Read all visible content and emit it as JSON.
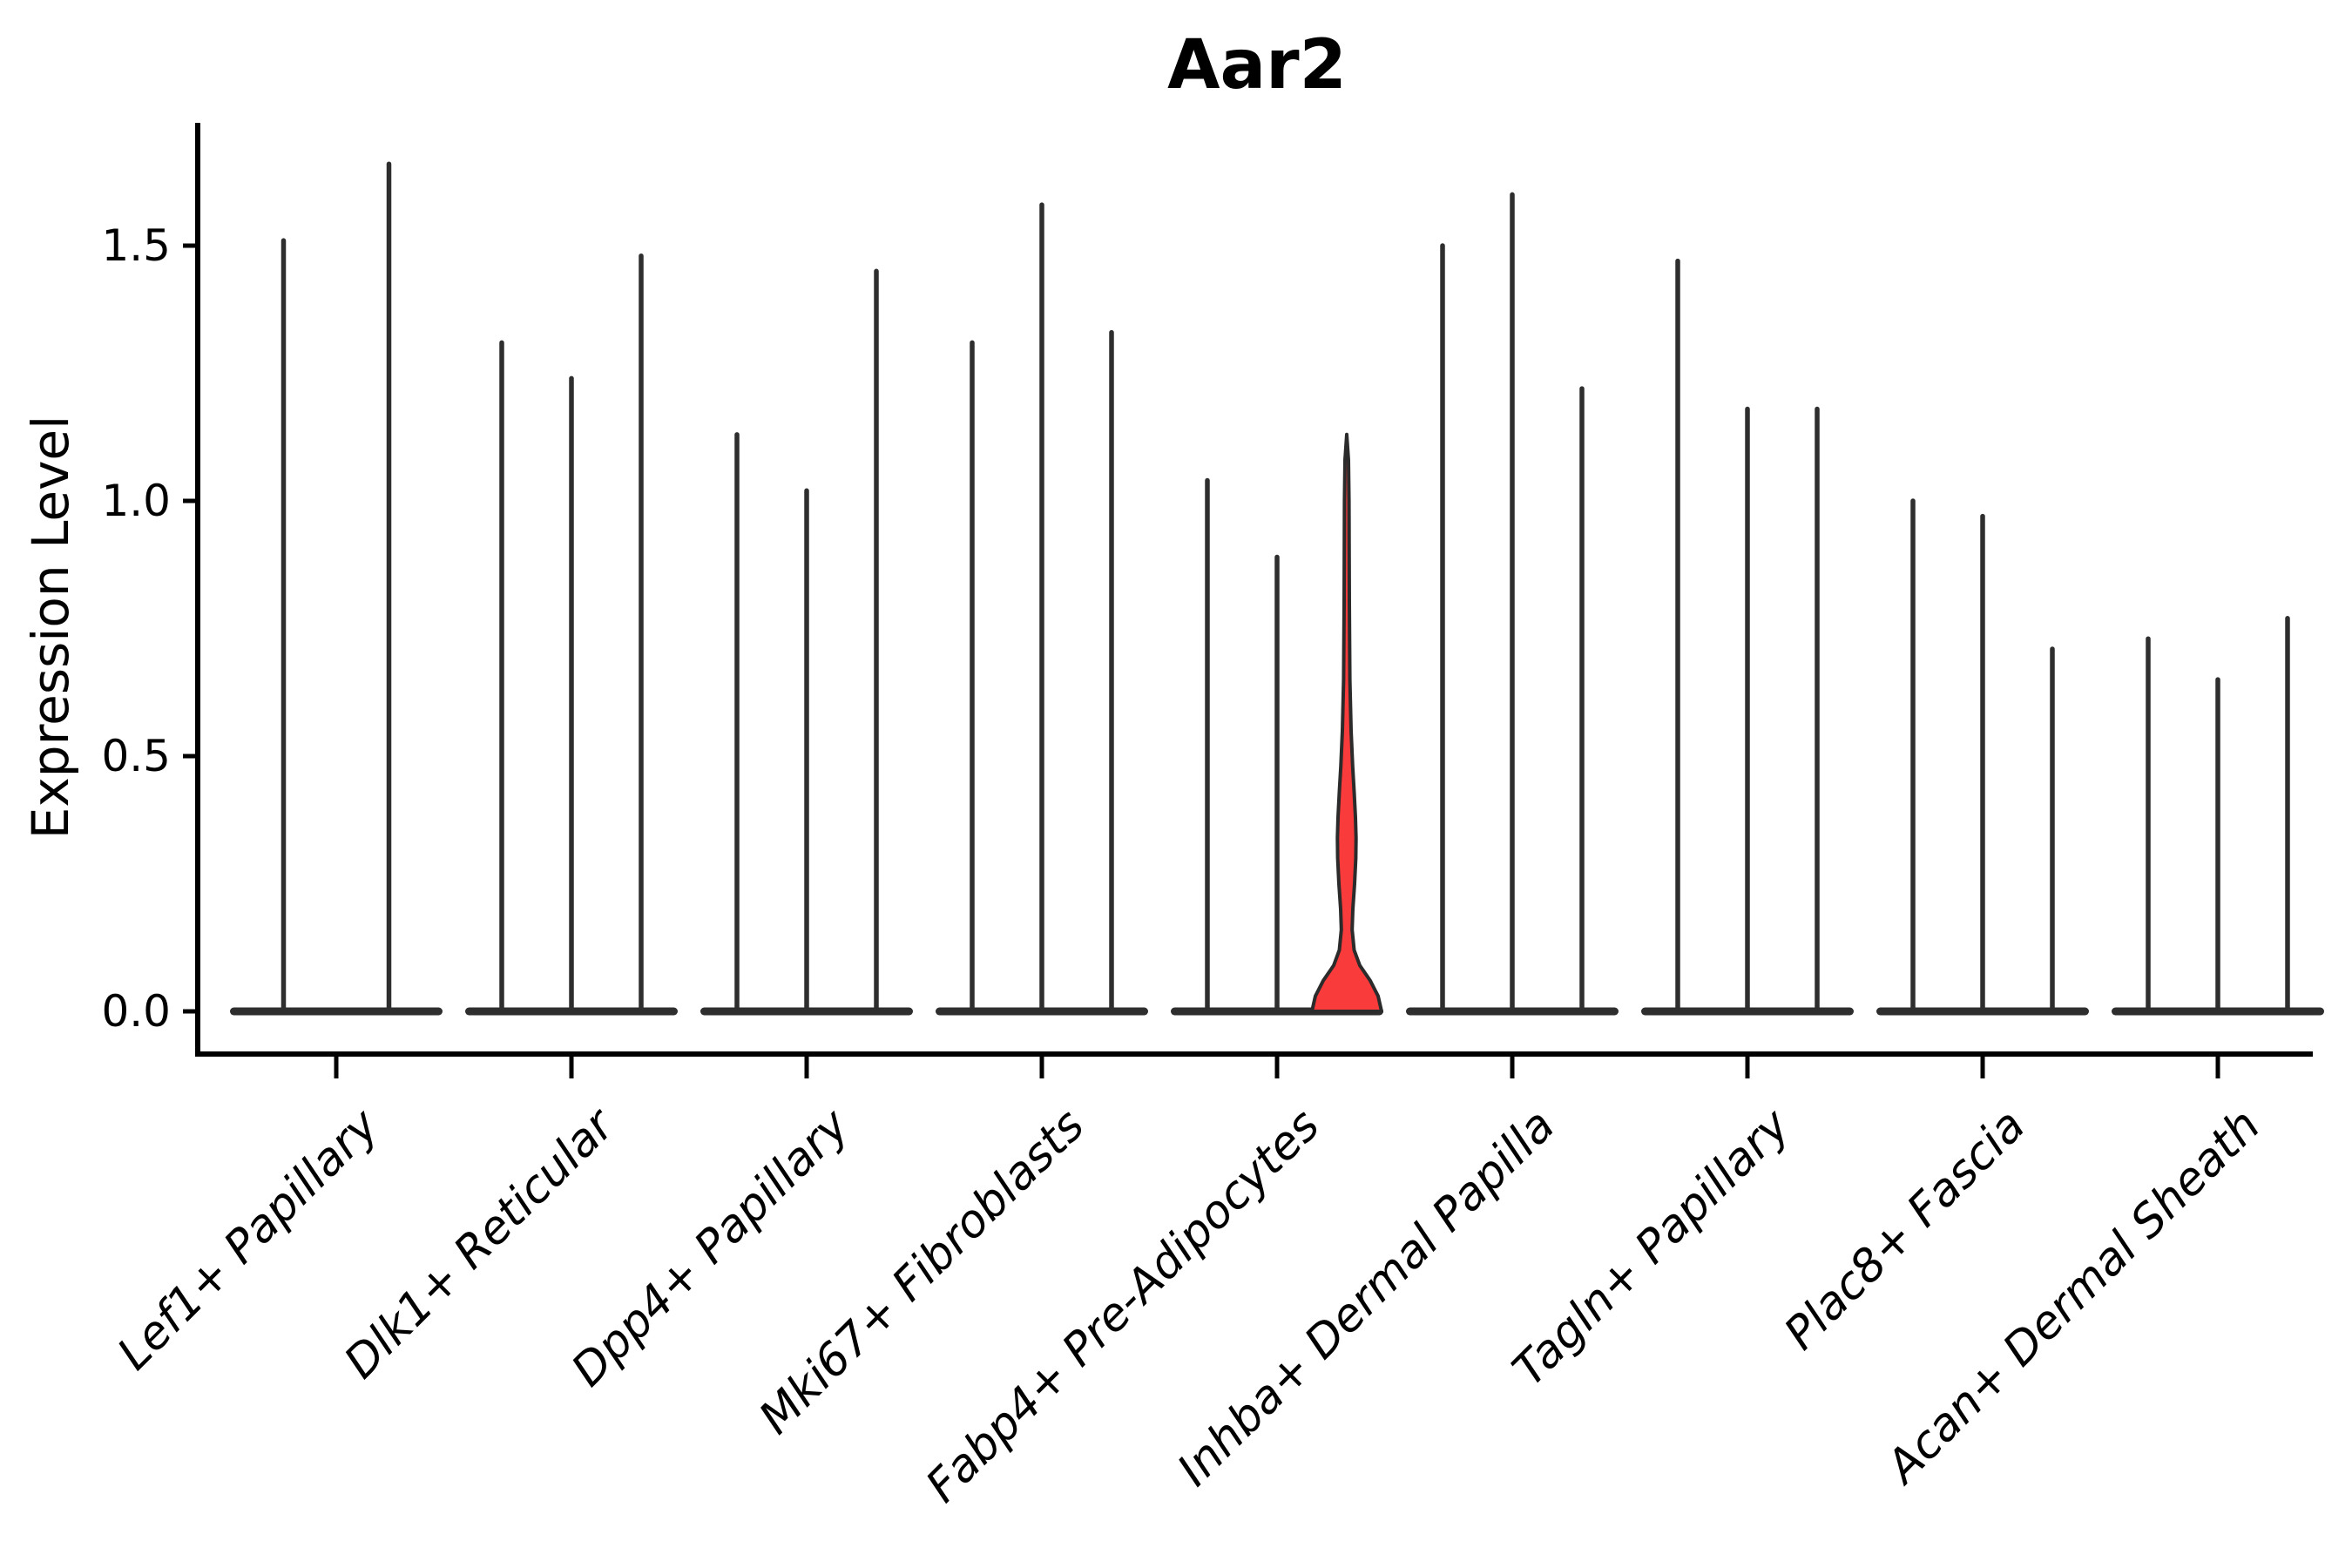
{
  "figure": {
    "title": "Aar2",
    "background": "#ffffff"
  },
  "chart_data": {
    "type": "violin",
    "title": "Aar2",
    "xlabel": "",
    "ylabel": "Expression Level",
    "yticks": [
      "0.0",
      "0.5",
      "1.0",
      "1.5"
    ],
    "ytick_values": [
      0.0,
      0.5,
      1.0,
      1.5
    ],
    "ylim": [
      -0.08,
      1.74
    ],
    "grid": false,
    "legend": "none",
    "categories": [
      "Lef1+ Papillary",
      "Dlk1+ Reticular",
      "Dpp4+ Papillary",
      "Mki67+ Fibroblasts",
      "Fabp4+ Pre-Adipocytes",
      "Inhba+ Dermal Papilla",
      "Tagln+ Papillary",
      "Plac8+ Fascia",
      "Acan+ Dermal Sheath"
    ],
    "groups": [
      {
        "label": "Lef1+ Papillary",
        "violin_max_values": [
          1.51,
          1.66
        ]
      },
      {
        "label": "Dlk1+ Reticular",
        "violin_max_values": [
          1.31,
          1.24,
          1.48
        ]
      },
      {
        "label": "Dpp4+ Papillary",
        "violin_max_values": [
          1.13,
          1.02,
          1.45
        ]
      },
      {
        "label": "Mki67+ Fibroblasts",
        "violin_max_values": [
          1.31,
          1.58,
          1.33
        ]
      },
      {
        "label": "Fabp4+ Pre-Adipocytes",
        "violin_max_values": [
          1.04,
          0.89,
          1.13
        ]
      },
      {
        "label": "Inhba+ Dermal Papilla",
        "violin_max_values": [
          1.5,
          1.6,
          1.22
        ]
      },
      {
        "label": "Tagln+ Papillary",
        "violin_max_values": [
          1.47,
          1.18,
          1.18
        ]
      },
      {
        "label": "Plac8+ Fascia",
        "violin_max_values": [
          1.0,
          0.97,
          0.71
        ]
      },
      {
        "label": "Acan+ Dermal Sheath",
        "violin_max_values": [
          0.73,
          0.65,
          0.77
        ]
      }
    ],
    "highlighted_violin": {
      "group_label": "Fabp4+ Pre-Adipocytes",
      "group_index": 4,
      "violin_index": 2,
      "max_value": 1.13,
      "bulge_peak_value": 0.33,
      "fill_color": "#f93b3b",
      "outline_color": "#2b2b2b",
      "density_profile": [
        [
          0.0,
          1.0
        ],
        [
          0.03,
          0.9
        ],
        [
          0.06,
          0.675
        ],
        [
          0.09,
          0.375
        ],
        [
          0.12,
          0.2125
        ],
        [
          0.16,
          0.155
        ],
        [
          0.2,
          0.175
        ],
        [
          0.25,
          0.225
        ],
        [
          0.3,
          0.26
        ],
        [
          0.34,
          0.2675
        ],
        [
          0.38,
          0.25
        ],
        [
          0.43,
          0.2125
        ],
        [
          0.48,
          0.17
        ],
        [
          0.55,
          0.125
        ],
        [
          0.65,
          0.09
        ],
        [
          0.8,
          0.075
        ],
        [
          1.0,
          0.065
        ],
        [
          1.08,
          0.05
        ],
        [
          1.13,
          0.0
        ]
      ]
    },
    "colors": {
      "violin_line": "#2e2e2e",
      "axis_spine": "#000000",
      "highlight_fill": "#f93b3b",
      "highlight_outline": "#2b2b2b"
    }
  }
}
